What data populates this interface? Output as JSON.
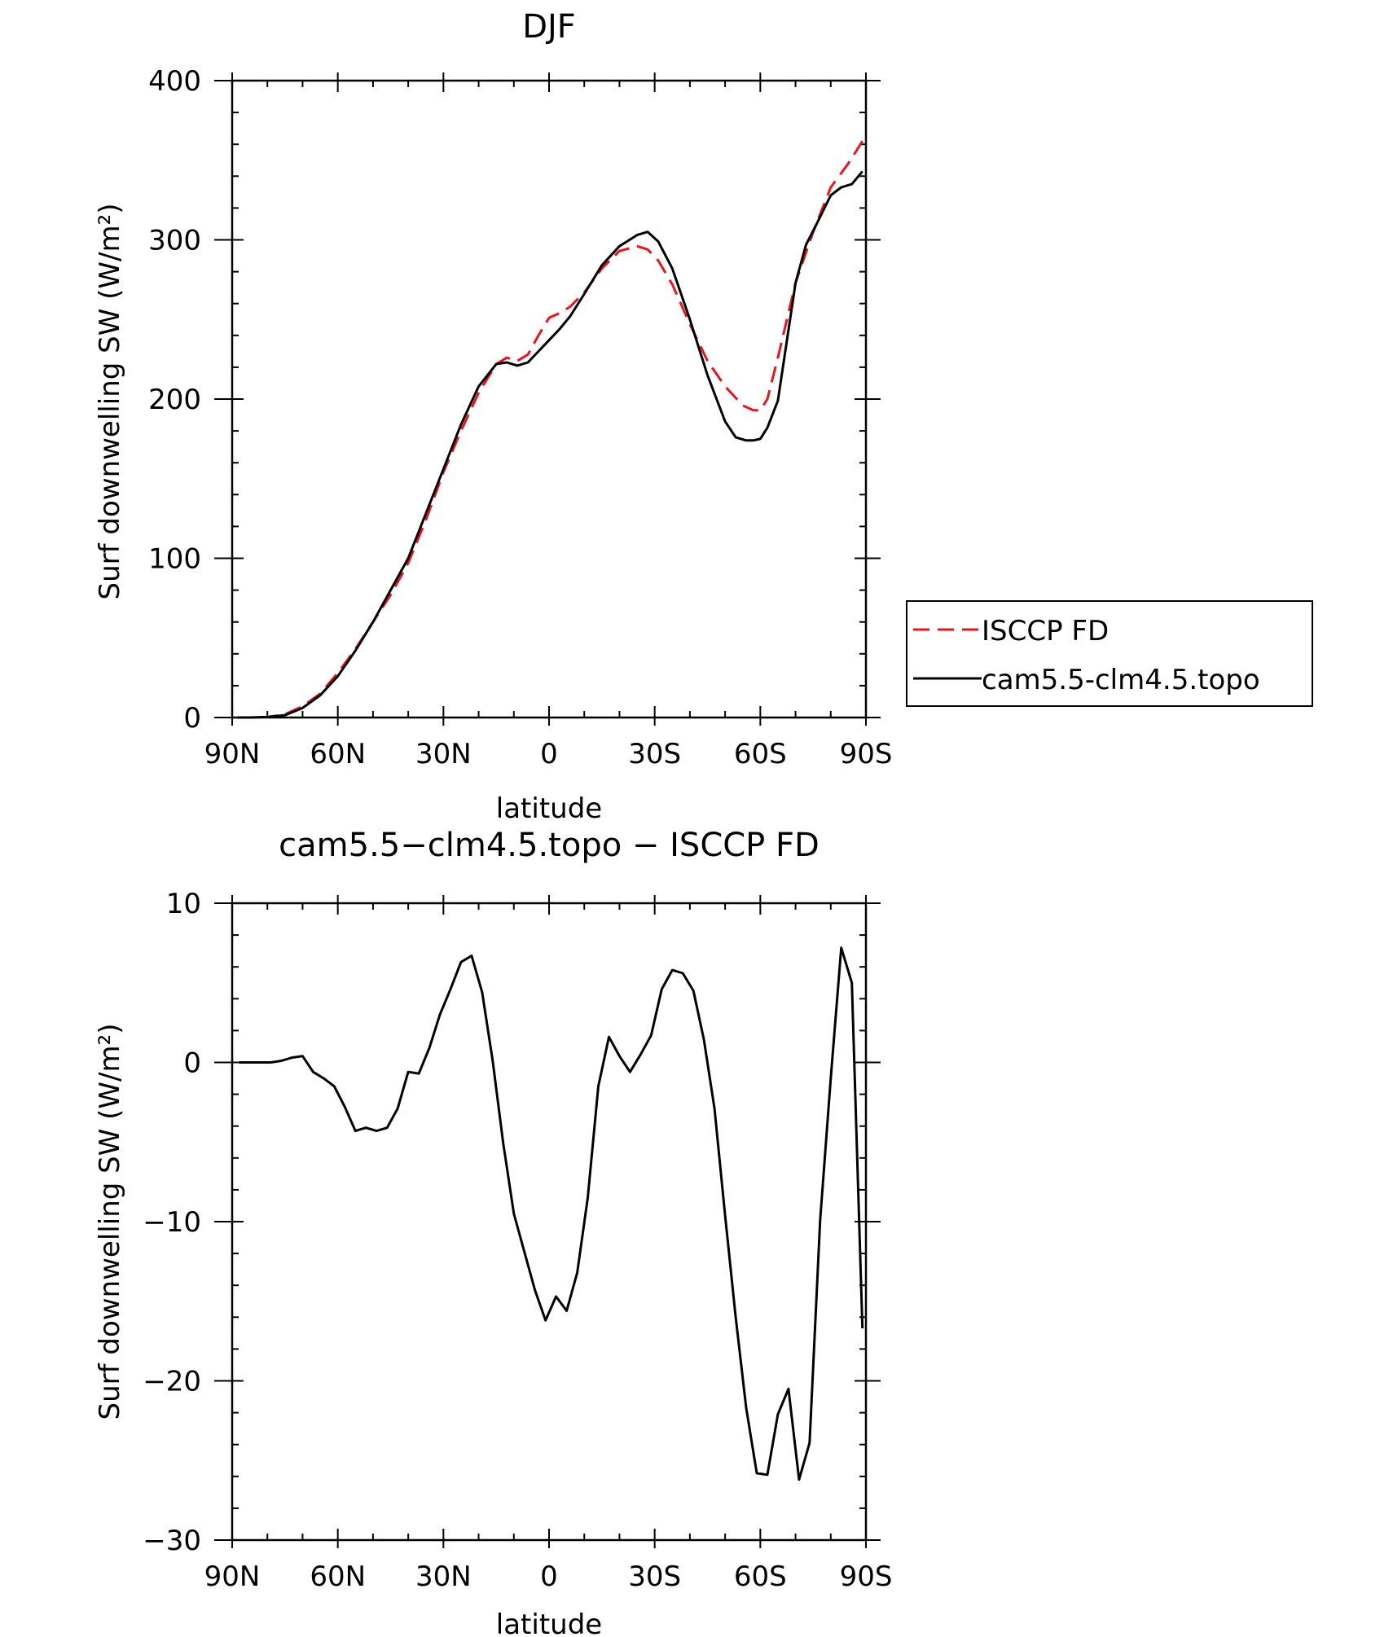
{
  "chart_data": [
    {
      "type": "line",
      "title": "DJF",
      "xlabel": "latitude",
      "ylabel": "Surf downwelling SW (W/m²)",
      "ylim": [
        0,
        400
      ],
      "xlim": [
        90,
        -90
      ],
      "x_direction": "90N to 90S",
      "x_ticks": [
        {
          "value": 90,
          "label": "90N"
        },
        {
          "value": 60,
          "label": "60N"
        },
        {
          "value": 30,
          "label": "30N"
        },
        {
          "value": 0,
          "label": "0"
        },
        {
          "value": -30,
          "label": "30S"
        },
        {
          "value": -60,
          "label": "60S"
        },
        {
          "value": -90,
          "label": "90S"
        }
      ],
      "y_ticks": [
        {
          "value": 0,
          "label": "0"
        },
        {
          "value": 100,
          "label": "100"
        },
        {
          "value": 200,
          "label": "200"
        },
        {
          "value": 300,
          "label": "300"
        },
        {
          "value": 400,
          "label": "400"
        }
      ],
      "legend_position": "right",
      "series": [
        {
          "name": "ISCCP FD",
          "color": "#e8141e",
          "dash": "dashed",
          "x": [
            88.6,
            85,
            80,
            75,
            70,
            65,
            60,
            55,
            50,
            45,
            40,
            35,
            30,
            25,
            20,
            15,
            12,
            9,
            6,
            3,
            0,
            -3,
            -6,
            -10,
            -15,
            -20,
            -25,
            -28,
            -31,
            -35,
            -40,
            -45,
            -50,
            -55,
            -58,
            -60,
            -62,
            -65,
            -70,
            -75,
            -80,
            -85,
            -89
          ],
          "y": [
            0,
            0,
            0.3,
            2,
            7,
            15,
            28,
            43,
            60,
            77,
            97,
            124,
            154,
            180,
            204,
            222,
            226,
            224,
            228,
            240,
            251,
            254,
            258,
            267,
            282,
            293,
            296,
            294,
            287,
            272,
            247,
            224,
            208,
            196,
            193,
            193,
            200,
            226,
            273,
            305,
            333,
            348,
            362
          ]
        },
        {
          "name": "cam5.5-clm4.5.topo",
          "color": "#000000",
          "dash": "solid",
          "x": [
            88.6,
            85,
            80,
            75,
            70,
            65,
            60,
            55,
            50,
            45,
            40,
            35,
            30,
            25,
            20,
            15,
            12,
            9,
            6,
            3,
            0,
            -3,
            -6,
            -10,
            -15,
            -20,
            -25,
            -28,
            -31,
            -35,
            -40,
            -45,
            -50,
            -53,
            -56,
            -58,
            -60,
            -62,
            -65,
            -70,
            -73,
            -76,
            -80,
            -83,
            -86,
            -89
          ],
          "y": [
            0,
            0,
            0.3,
            1.5,
            6,
            14,
            26,
            42,
            60,
            80,
            100,
            128,
            156,
            184,
            208,
            222,
            223,
            221,
            223,
            230,
            237,
            244,
            252,
            266,
            284,
            296,
            303,
            305,
            299,
            282,
            250,
            215,
            186,
            176,
            174,
            174,
            175,
            182,
            199,
            273,
            297,
            310,
            328,
            333,
            335,
            343
          ]
        }
      ]
    },
    {
      "type": "line",
      "title": "cam5.5−clm4.5.topo − ISCCP FD",
      "xlabel": "latitude",
      "ylabel": "Surf downwelling SW (W/m²)",
      "ylim": [
        -30,
        10
      ],
      "xlim": [
        90,
        -90
      ],
      "x_direction": "90N to 90S",
      "x_ticks": [
        {
          "value": 90,
          "label": "90N"
        },
        {
          "value": 60,
          "label": "60N"
        },
        {
          "value": 30,
          "label": "30N"
        },
        {
          "value": 0,
          "label": "0"
        },
        {
          "value": -30,
          "label": "30S"
        },
        {
          "value": -60,
          "label": "60S"
        },
        {
          "value": -90,
          "label": "90S"
        }
      ],
      "y_ticks": [
        {
          "value": -30,
          "label": "−30"
        },
        {
          "value": -20,
          "label": "−20"
        },
        {
          "value": -10,
          "label": "−10"
        },
        {
          "value": 0,
          "label": "0"
        },
        {
          "value": 10,
          "label": "10"
        }
      ],
      "series": [
        {
          "color": "#000000",
          "dash": "solid",
          "x": [
            88,
            85,
            82,
            79,
            76,
            73,
            70,
            67,
            64,
            61,
            58,
            55,
            52,
            49,
            46,
            43,
            40,
            37,
            34,
            31,
            28,
            25,
            22,
            19,
            16,
            13,
            10,
            7,
            4,
            1,
            -2,
            -5,
            -8,
            -11,
            -14,
            -17,
            -20,
            -23,
            -26,
            -29,
            -32,
            -35,
            -38,
            -41,
            -44,
            -47,
            -50,
            -53,
            -56,
            -59,
            -62,
            -65,
            -68,
            -71,
            -74,
            -77,
            -80,
            -83,
            -86,
            -89
          ],
          "y": [
            0,
            0,
            0,
            0,
            0.1,
            0.3,
            0.4,
            -0.6,
            -1.0,
            -1.5,
            -2.8,
            -4.3,
            -4.1,
            -4.3,
            -4.1,
            -2.9,
            -0.6,
            -0.7,
            0.9,
            3.0,
            4.6,
            6.3,
            6.7,
            4.4,
            0.1,
            -5.1,
            -9.5,
            -11.9,
            -14.3,
            -16.2,
            -14.7,
            -15.6,
            -13.2,
            -8.5,
            -1.5,
            1.6,
            0.4,
            -0.6,
            0.5,
            1.7,
            4.6,
            5.8,
            5.6,
            4.5,
            1.4,
            -2.9,
            -9.6,
            -16.0,
            -21.7,
            -25.8,
            -25.9,
            -22.1,
            -20.5,
            -26.2,
            -23.9,
            -9.9,
            -1.0,
            7.2,
            5.0,
            -16.7
          ]
        }
      ]
    }
  ]
}
